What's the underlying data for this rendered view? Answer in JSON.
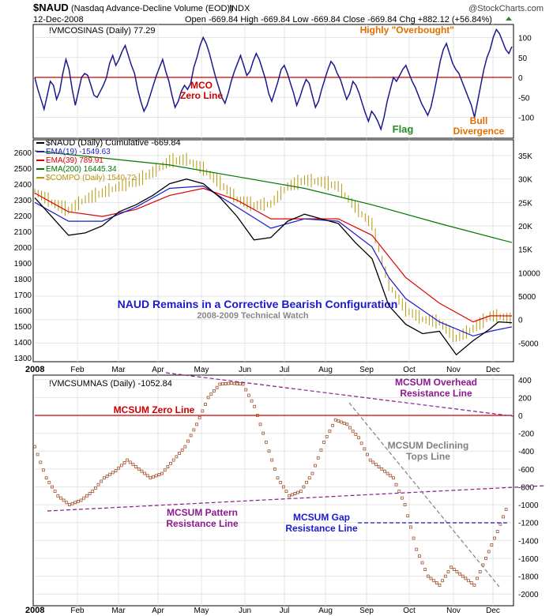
{
  "header": {
    "symbol": "$NAUD",
    "description": "(Nasdaq Advance-Decline Volume (EOD))",
    "exchange": "INDX",
    "date": "12-Dec-2008",
    "source": "@StockCharts.com",
    "quote": "Open -669.84  High -669.84  Low -669.84  Close -669.84  Chg +882.12 (+56.84%)"
  },
  "colors": {
    "mco_line": "#1a1a8c",
    "zero_line": "#cc0000",
    "naud_line": "#000000",
    "ema19": "#1a1acc",
    "ema39": "#dd0000",
    "ema200": "#007700",
    "compo": "#b8960b",
    "mcsum": "#a0522d",
    "purple": "#8b1a8b",
    "blue_dash": "#1a1acc",
    "grey_dash": "#808080"
  },
  "chart_data": [
    {
      "type": "line",
      "panel": "mco",
      "legend": "!VMCOSINAS (Daily) 77.29",
      "ylim": [
        -135,
        125
      ],
      "yticks": [
        100,
        50,
        0,
        -50,
        -100
      ],
      "series": [
        {
          "name": "!VMCOSINAS",
          "values": [
            0,
            -30,
            -55,
            -80,
            -45,
            -10,
            -20,
            -55,
            -35,
            10,
            45,
            20,
            -30,
            -70,
            -35,
            0,
            10,
            5,
            -20,
            -45,
            -50,
            -35,
            -20,
            0,
            35,
            55,
            30,
            45,
            65,
            80,
            55,
            30,
            10,
            -30,
            -60,
            -85,
            -70,
            -45,
            -20,
            5,
            25,
            45,
            15,
            -10,
            -45,
            -75,
            -60,
            -35,
            -20,
            -30,
            -15,
            25,
            50,
            80,
            100,
            85,
            60,
            30,
            0,
            -25,
            -50,
            -65,
            -40,
            -10,
            15,
            35,
            55,
            30,
            5,
            15,
            40,
            60,
            45,
            20,
            -5,
            -40,
            -60,
            -35,
            -10,
            20,
            30,
            10,
            -15,
            -40,
            -70,
            -50,
            -25,
            -5,
            -15,
            -45,
            -75,
            -60,
            -30,
            -5,
            20,
            40,
            30,
            10,
            -5,
            -30,
            -55,
            -40,
            -10,
            -20,
            -40,
            -65,
            -90,
            -110,
            -85,
            -95,
            -110,
            -130,
            -100,
            -60,
            -30,
            0,
            -10,
            5,
            20,
            30,
            10,
            -10,
            -25,
            -45,
            -65,
            -80,
            -95,
            -75,
            -40,
            0,
            40,
            70,
            85,
            60,
            35,
            20,
            10,
            -10,
            -30,
            -50,
            -70,
            -100,
            -60,
            -20,
            20,
            50,
            70,
            100,
            120,
            110,
            90,
            70,
            60,
            77.29
          ]
        }
      ],
      "zero_line_label": "MCO Zero Line",
      "annotations": [
        "Highly \"Overbought\"",
        "Flag",
        "Bull Divergence"
      ]
    },
    {
      "type": "line",
      "panel": "naud",
      "legend": [
        "$NAUD (Daily) Cumulative -669.84",
        "EMA(19) -1549.63",
        "EMA(39) 789.91",
        "EMA(200) 16445.34",
        "$COMPO (Daily) 1540.72"
      ],
      "left_ylim": [
        1250,
        2670
      ],
      "left_yticks": [
        2600,
        2500,
        2400,
        2300,
        2200,
        2100,
        2000,
        1900,
        1800,
        1700,
        1600,
        1500,
        1400,
        1300
      ],
      "right_ylim": [
        -11000,
        37000
      ],
      "right_yticks": [
        "35K",
        "30K",
        "25K",
        "20K",
        "15K",
        "10000",
        "5000",
        "0",
        "-5000"
      ],
      "right_tick_values": [
        35000,
        30000,
        25000,
        20000,
        15000,
        10000,
        5000,
        0,
        -5000
      ],
      "compo_points": [
        [
          0,
          2350
        ],
        [
          10,
          2280
        ],
        [
          20,
          2230
        ],
        [
          30,
          2300
        ],
        [
          40,
          2340
        ],
        [
          50,
          2380
        ],
        [
          60,
          2410
        ],
        [
          70,
          2470
        ],
        [
          80,
          2540
        ],
        [
          90,
          2550
        ],
        [
          100,
          2490
        ],
        [
          110,
          2400
        ],
        [
          120,
          2300
        ],
        [
          130,
          2260
        ],
        [
          140,
          2270
        ],
        [
          150,
          2380
        ],
        [
          160,
          2420
        ],
        [
          170,
          2410
        ],
        [
          180,
          2380
        ],
        [
          190,
          2250
        ],
        [
          200,
          2140
        ],
        [
          210,
          1760
        ],
        [
          220,
          1600
        ],
        [
          230,
          1540
        ],
        [
          240,
          1520
        ],
        [
          250,
          1420
        ],
        [
          260,
          1480
        ],
        [
          270,
          1560
        ],
        [
          275,
          1560
        ],
        [
          283,
          1540.72
        ]
      ],
      "naud_points": [
        [
          0,
          26000
        ],
        [
          10,
          22000
        ],
        [
          20,
          18000
        ],
        [
          30,
          18500
        ],
        [
          40,
          20000
        ],
        [
          50,
          23000
        ],
        [
          60,
          24500
        ],
        [
          70,
          26500
        ],
        [
          80,
          29000
        ],
        [
          90,
          30000
        ],
        [
          100,
          29000
        ],
        [
          110,
          26000
        ],
        [
          120,
          22000
        ],
        [
          130,
          17000
        ],
        [
          140,
          17500
        ],
        [
          150,
          21000
        ],
        [
          160,
          22500
        ],
        [
          170,
          21500
        ],
        [
          180,
          20500
        ],
        [
          190,
          16500
        ],
        [
          200,
          13000
        ],
        [
          210,
          3000
        ],
        [
          220,
          -1000
        ],
        [
          230,
          -3000
        ],
        [
          240,
          -2500
        ],
        [
          250,
          -7500
        ],
        [
          260,
          -4500
        ],
        [
          270,
          -2000
        ],
        [
          275,
          -500
        ],
        [
          283,
          -669.84
        ]
      ],
      "ema19_points": [
        [
          0,
          25000
        ],
        [
          20,
          21000
        ],
        [
          40,
          21000
        ],
        [
          60,
          24000
        ],
        [
          80,
          28000
        ],
        [
          100,
          28500
        ],
        [
          120,
          24000
        ],
        [
          140,
          19500
        ],
        [
          160,
          21500
        ],
        [
          180,
          21000
        ],
        [
          200,
          15500
        ],
        [
          210,
          9000
        ],
        [
          220,
          4500
        ],
        [
          240,
          -500
        ],
        [
          260,
          -3500
        ],
        [
          270,
          -2500
        ],
        [
          283,
          -1549.63
        ]
      ],
      "ema39_points": [
        [
          0,
          27000
        ],
        [
          20,
          23000
        ],
        [
          40,
          22000
        ],
        [
          60,
          23500
        ],
        [
          80,
          26500
        ],
        [
          100,
          28000
        ],
        [
          120,
          25500
        ],
        [
          140,
          21500
        ],
        [
          160,
          21500
        ],
        [
          180,
          21500
        ],
        [
          200,
          18000
        ],
        [
          210,
          13500
        ],
        [
          220,
          9000
        ],
        [
          240,
          3500
        ],
        [
          260,
          -500
        ],
        [
          270,
          800
        ],
        [
          283,
          789.91
        ]
      ],
      "ema200_points": [
        [
          0,
          36000
        ],
        [
          40,
          34500
        ],
        [
          80,
          33000
        ],
        [
          120,
          30500
        ],
        [
          160,
          28000
        ],
        [
          200,
          24500
        ],
        [
          240,
          20500
        ],
        [
          283,
          16445.34
        ]
      ],
      "title": "NAUD Remains in a Corrective Bearish Configuration",
      "subtitle": "2008-2009 Technical Watch"
    },
    {
      "type": "scatter",
      "panel": "mcsum",
      "legend": "!VMCSUMNAS (Daily) -1052.84",
      "ylim": [
        -2000,
        420
      ],
      "yticks": [
        400,
        200,
        0,
        -200,
        -400,
        -600,
        -800,
        -1000,
        -1200,
        -1400,
        -1600,
        -1800,
        -2000
      ],
      "points": [
        [
          0,
          -350
        ],
        [
          8,
          -700
        ],
        [
          16,
          -900
        ],
        [
          24,
          -1000
        ],
        [
          32,
          -950
        ],
        [
          40,
          -850
        ],
        [
          48,
          -700
        ],
        [
          56,
          -620
        ],
        [
          64,
          -500
        ],
        [
          72,
          -600
        ],
        [
          80,
          -700
        ],
        [
          88,
          -650
        ],
        [
          96,
          -500
        ],
        [
          104,
          -350
        ],
        [
          112,
          -100
        ],
        [
          120,
          200
        ],
        [
          128,
          350
        ],
        [
          136,
          360
        ],
        [
          144,
          350
        ],
        [
          152,
          100
        ],
        [
          160,
          -300
        ],
        [
          168,
          -700
        ],
        [
          176,
          -900
        ],
        [
          184,
          -850
        ],
        [
          192,
          -650
        ],
        [
          200,
          -300
        ],
        [
          208,
          -50
        ],
        [
          216,
          -100
        ],
        [
          224,
          -250
        ],
        [
          232,
          -500
        ],
        [
          240,
          -600
        ],
        [
          248,
          -700
        ],
        [
          256,
          -1000
        ],
        [
          264,
          -1500
        ],
        [
          272,
          -1800
        ],
        [
          280,
          -1900
        ],
        [
          288,
          -1700
        ],
        [
          296,
          -1800
        ],
        [
          304,
          -1900
        ],
        [
          312,
          -1600
        ],
        [
          320,
          -1300
        ],
        [
          326,
          -1052.84
        ]
      ],
      "annotations": [
        "MCSUM Zero Line",
        "MCSUM Overhead Resistance Line",
        "MCSUM Declining Tops Line",
        "MCSUM Pattern Resistance Line",
        "MCSUM Gap Resistance Line"
      ]
    }
  ],
  "x_axis": {
    "year": "2008",
    "months": [
      "Feb",
      "Mar",
      "Apr",
      "May",
      "Jun",
      "Jul",
      "Aug",
      "Sep",
      "Oct",
      "Nov",
      "Dec"
    ]
  }
}
